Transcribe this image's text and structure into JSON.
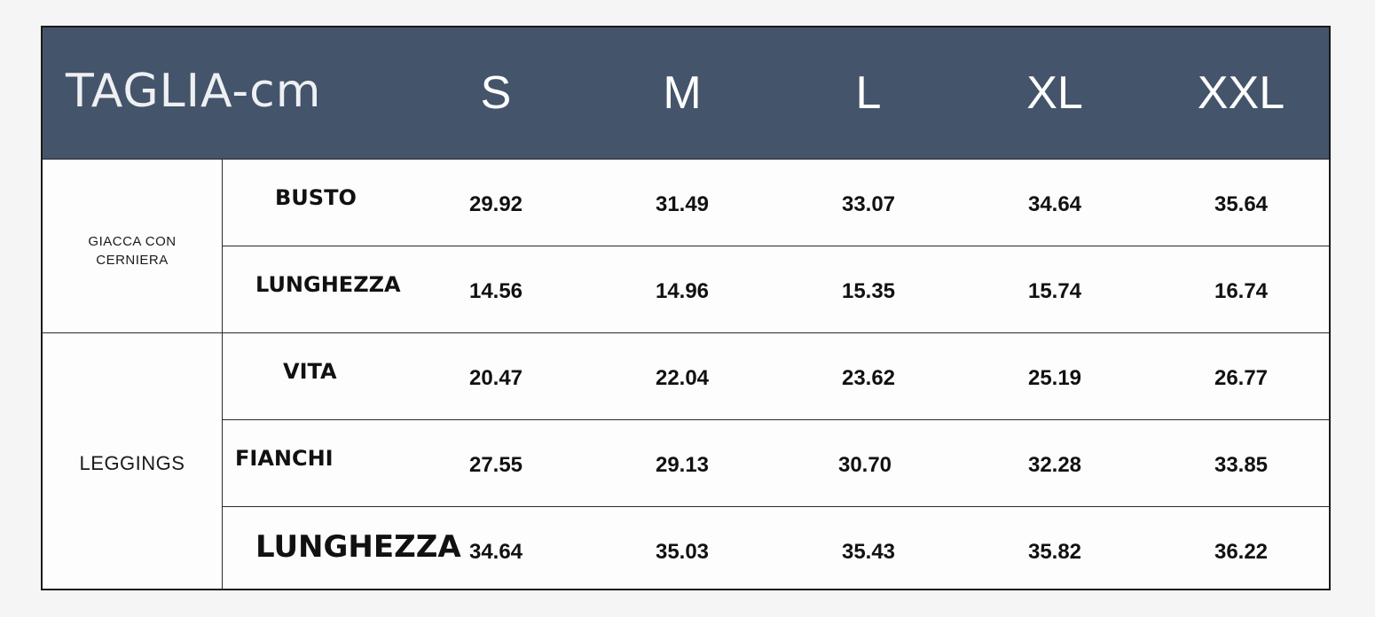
{
  "header": {
    "title": "TAGLIA-cm",
    "sizes": [
      "S",
      "M",
      "L",
      "XL",
      "XXL"
    ]
  },
  "groups": [
    {
      "label_lines": [
        "GIACCA CON",
        "CERNIERA"
      ],
      "rows": [
        {
          "measure": "BUSTO",
          "values": [
            "29.92",
            "31.49",
            "33.07",
            "34.64",
            "35.64"
          ]
        },
        {
          "measure": "LUNGHEZZA",
          "values": [
            "14.56",
            "14.96",
            "15.35",
            "15.74",
            "16.74"
          ]
        }
      ]
    },
    {
      "label_lines": [
        "LEGGINGS"
      ],
      "rows": [
        {
          "measure": "VITA",
          "values": [
            "20.47",
            "22.04",
            "23.62",
            "25.19",
            "26.77"
          ]
        },
        {
          "measure": "FIANCHI",
          "values": [
            "27.55",
            "29.13",
            "30.70",
            "32.28",
            "33.85"
          ]
        },
        {
          "measure": "LUNGHEZZA",
          "values": [
            "34.64",
            "35.03",
            "35.43",
            "35.82",
            "36.22"
          ]
        }
      ]
    }
  ],
  "colors": {
    "header_bg": "#44546a",
    "header_text": "#ffffff",
    "border": "#1a1a1a"
  }
}
